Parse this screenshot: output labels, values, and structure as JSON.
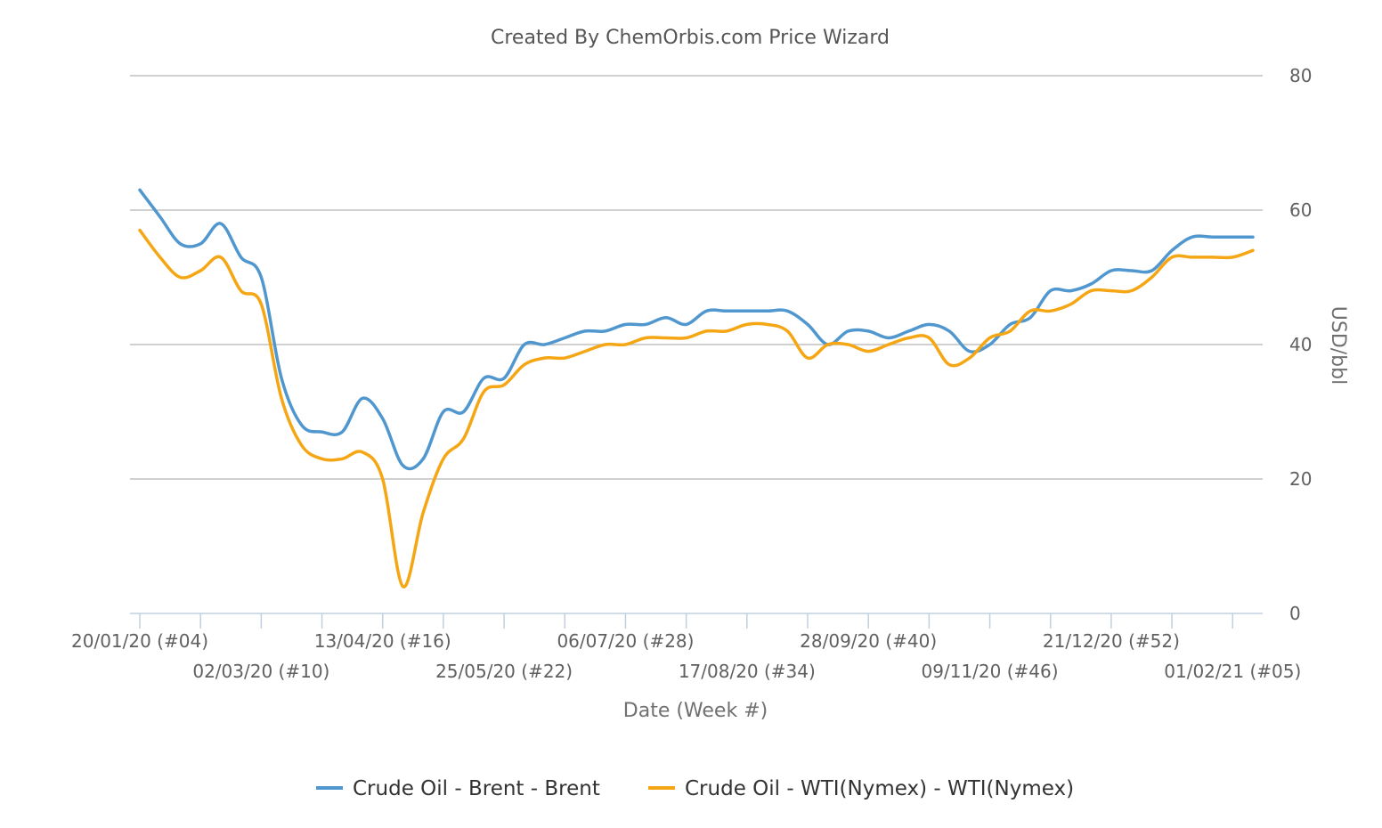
{
  "chart_data": {
    "type": "line",
    "title": "Created By ChemOrbis.com Price Wizard",
    "xlabel": "Date (Week #)",
    "ylabel": "USD/bbl",
    "ylim": [
      0,
      80
    ],
    "y_ticks": [
      "0",
      "20",
      "40",
      "60",
      "80"
    ],
    "y_axis_side": "right",
    "grid": true,
    "legend_position": "bottom-center",
    "x_week_count": 55,
    "x_tick_labels": [
      {
        "week": 0,
        "label": "20/01/20 (#04)",
        "row": 0
      },
      {
        "week": 6,
        "label": "02/03/20 (#10)",
        "row": 1
      },
      {
        "week": 12,
        "label": "13/04/20 (#16)",
        "row": 0
      },
      {
        "week": 18,
        "label": "25/05/20 (#22)",
        "row": 1
      },
      {
        "week": 24,
        "label": "06/07/20 (#28)",
        "row": 0
      },
      {
        "week": 30,
        "label": "17/08/20 (#34)",
        "row": 1
      },
      {
        "week": 36,
        "label": "28/09/20 (#40)",
        "row": 0
      },
      {
        "week": 42,
        "label": "09/11/20 (#46)",
        "row": 1
      },
      {
        "week": 48,
        "label": "21/12/20 (#52)",
        "row": 0
      },
      {
        "week": 54,
        "label": "01/02/21 (#05)",
        "row": 1
      }
    ],
    "series": [
      {
        "name": "Crude Oil - Brent - Brent",
        "color": "#4f97ce",
        "values": [
          63,
          59,
          55,
          55,
          58,
          53,
          50,
          35,
          28,
          27,
          27,
          32,
          29,
          22,
          23,
          30,
          30,
          35,
          35,
          40,
          40,
          41,
          42,
          42,
          43,
          43,
          44,
          43,
          45,
          45,
          45,
          45,
          45,
          43,
          40,
          42,
          42,
          41,
          42,
          43,
          42,
          39,
          40,
          43,
          44,
          48,
          48,
          49,
          51,
          51,
          51,
          54,
          56,
          56,
          56,
          56
        ]
      },
      {
        "name": "Crude Oil - WTI(Nymex) - WTI(Nymex)",
        "color": "#f5a614",
        "values": [
          57,
          53,
          50,
          51,
          53,
          48,
          46,
          32,
          25,
          23,
          23,
          24,
          20,
          4,
          15,
          23,
          26,
          33,
          34,
          37,
          38,
          38,
          39,
          40,
          40,
          41,
          41,
          41,
          42,
          42,
          43,
          43,
          42,
          38,
          40,
          40,
          39,
          40,
          41,
          41,
          37,
          38,
          41,
          42,
          45,
          45,
          46,
          48,
          48,
          48,
          50,
          53,
          53,
          53,
          53,
          54
        ]
      }
    ]
  }
}
